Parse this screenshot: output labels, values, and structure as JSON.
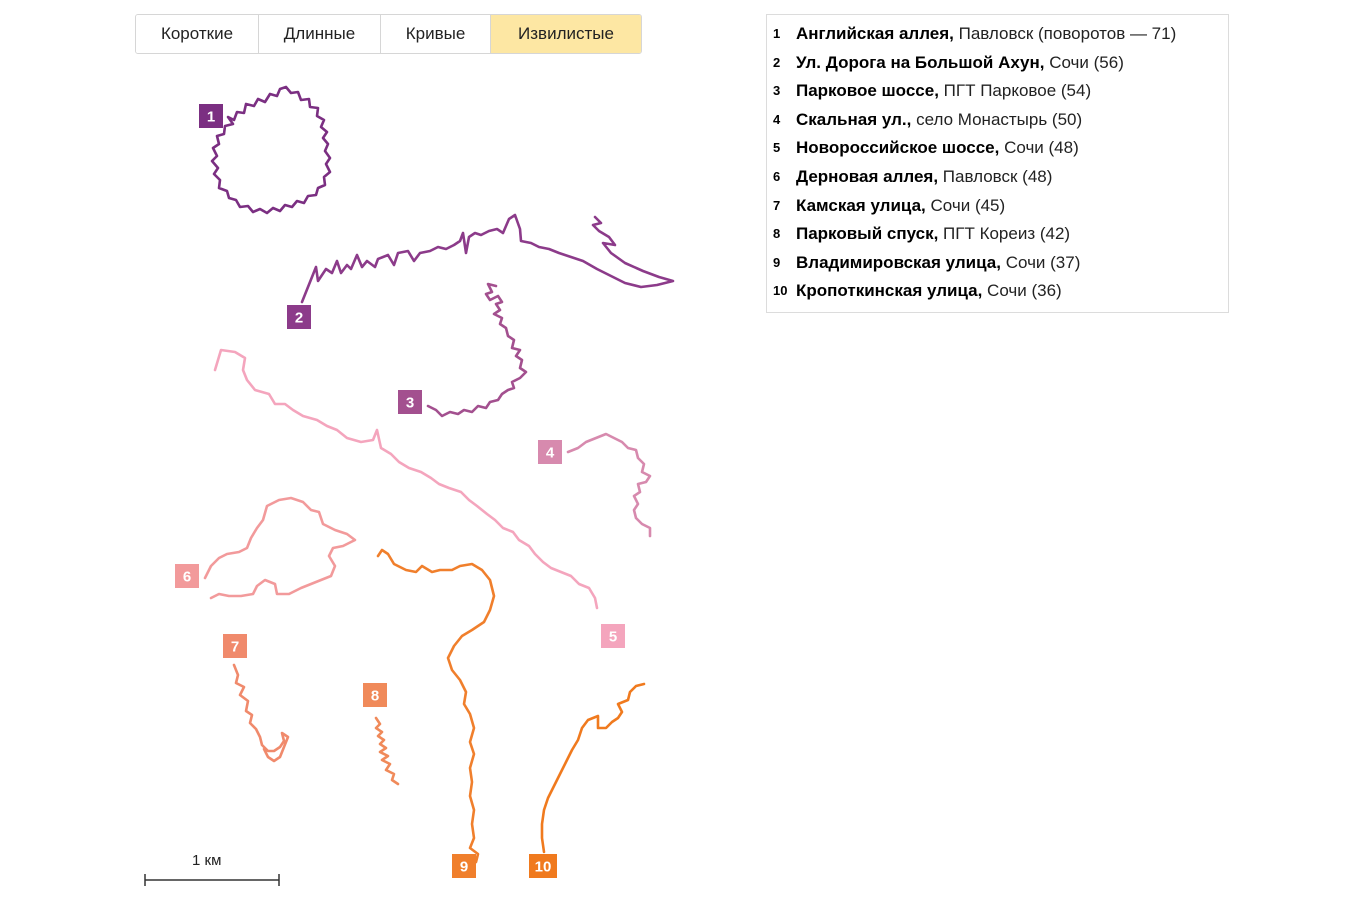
{
  "tabs": [
    {
      "label": "Короткие",
      "active": false
    },
    {
      "label": "Длинные",
      "active": false
    },
    {
      "label": "Кривые",
      "active": false
    },
    {
      "label": "Извилистые",
      "active": true
    }
  ],
  "legend": [
    {
      "num": "1",
      "name": "Английская аллея,",
      "rest": " Павловск (поворотов — 71)"
    },
    {
      "num": "2",
      "name": "Ул. Дорога на Большой Ахун,",
      "rest": " Сочи (56)"
    },
    {
      "num": "3",
      "name": "Парковое шоссе,",
      "rest": " ПГТ Парковое (54)"
    },
    {
      "num": "4",
      "name": "Скальная ул.,",
      "rest": " село Монастырь (50)"
    },
    {
      "num": "5",
      "name": "Новороссийское шоссе,",
      "rest": " Сочи (48)"
    },
    {
      "num": "6",
      "name": "Дерновая аллея,",
      "rest": " Павловск (48)"
    },
    {
      "num": "7",
      "name": "Камская улица,",
      "rest": " Сочи (45)"
    },
    {
      "num": "8",
      "name": "Парковый спуск,",
      "rest": " ПГТ Кореиз (42)"
    },
    {
      "num": "9",
      "name": "Владимировская улица,",
      "rest": " Сочи (37)"
    },
    {
      "num": "10",
      "name": "Кропоткинская улица,",
      "rest": " Сочи (36)"
    }
  ],
  "colors": {
    "r1": "#7b2f82",
    "r2": "#8c3b8a",
    "r3": "#a3508f",
    "r4": "#d78aae",
    "r5": "#f4a5bd",
    "r6": "#f29a9b",
    "r7": "#f08a6c",
    "r8": "#f08a5a",
    "r9": "#f07f2c",
    "r10": "#f07a1e",
    "tab_active": "#fde7a3"
  },
  "scale": {
    "label": "1 км"
  }
}
